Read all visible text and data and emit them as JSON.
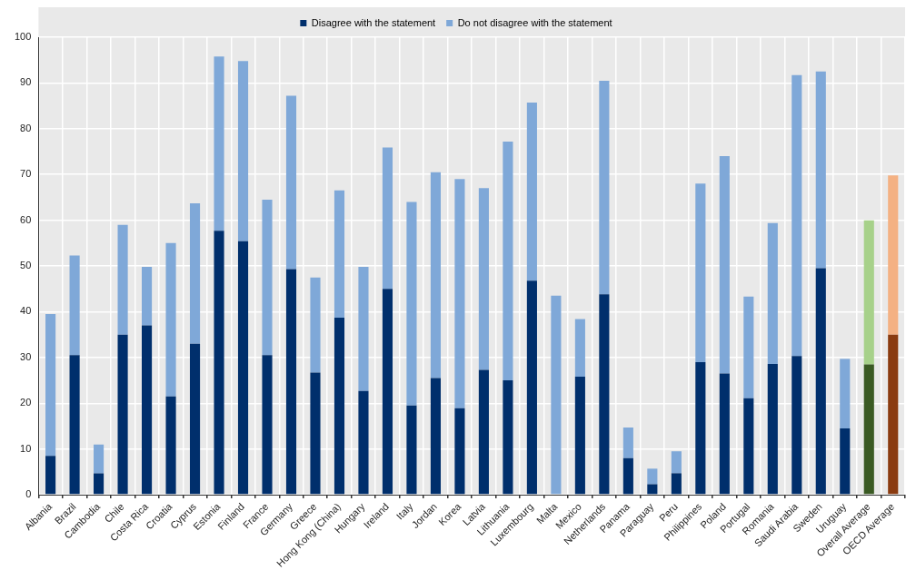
{
  "chart_data": {
    "type": "bar",
    "stacked": true,
    "legend": "top",
    "grid": true,
    "ylim": [
      0,
      100
    ],
    "yticks": [
      0,
      10,
      20,
      30,
      40,
      50,
      60,
      70,
      80,
      90,
      100
    ],
    "categories": [
      "Albania",
      "Brazil",
      "Cambodia",
      "Chile",
      "Costa Rica",
      "Croatia",
      "Cyprus",
      "Estonia",
      "Finland",
      "France",
      "Germany",
      "Greece",
      "Hong Kong (China)",
      "Hungary",
      "Ireland",
      "Italy",
      "Jordan",
      "Korea",
      "Latvia",
      "Lithuania",
      "Luxembourg",
      "Malta",
      "Mexico",
      "Netherlands",
      "Panama",
      "Paraguay",
      "Peru",
      "Philippines",
      "Poland",
      "Portugal",
      "Romania",
      "Saudi Arabia",
      "Sweden",
      "Uruguay",
      "Overall Average",
      "OECD Average"
    ],
    "series": [
      {
        "name": "Disagree with the statement",
        "color": "#002f6c",
        "colors": [
          "#002f6c",
          "#002f6c",
          "#002f6c",
          "#002f6c",
          "#002f6c",
          "#002f6c",
          "#002f6c",
          "#002f6c",
          "#002f6c",
          "#002f6c",
          "#002f6c",
          "#002f6c",
          "#002f6c",
          "#002f6c",
          "#002f6c",
          "#002f6c",
          "#002f6c",
          "#002f6c",
          "#002f6c",
          "#002f6c",
          "#002f6c",
          "#002f6c",
          "#002f6c",
          "#002f6c",
          "#002f6c",
          "#002f6c",
          "#002f6c",
          "#002f6c",
          "#002f6c",
          "#002f6c",
          "#002f6c",
          "#002f6c",
          "#002f6c",
          "#002f6c",
          "#3a5a23",
          "#8a3b10"
        ],
        "values": [
          8.5,
          30.5,
          4.7,
          35,
          37,
          21.5,
          33,
          57.7,
          55.4,
          30.5,
          49.3,
          26.7,
          38.7,
          22.7,
          45,
          19.5,
          25.5,
          18.9,
          27.3,
          25,
          46.8,
          0,
          25.8,
          43.8,
          8,
          2.3,
          4.7,
          29,
          26.5,
          21.1,
          28.6,
          30.3,
          49.5,
          14.5,
          28.5,
          35
        ]
      },
      {
        "name": "Do not disagree with the statement",
        "color": "#7fa8d8",
        "colors": [
          "#7fa8d8",
          "#7fa8d8",
          "#7fa8d8",
          "#7fa8d8",
          "#7fa8d8",
          "#7fa8d8",
          "#7fa8d8",
          "#7fa8d8",
          "#7fa8d8",
          "#7fa8d8",
          "#7fa8d8",
          "#7fa8d8",
          "#7fa8d8",
          "#7fa8d8",
          "#7fa8d8",
          "#7fa8d8",
          "#7fa8d8",
          "#7fa8d8",
          "#7fa8d8",
          "#7fa8d8",
          "#7fa8d8",
          "#7fa8d8",
          "#7fa8d8",
          "#7fa8d8",
          "#7fa8d8",
          "#7fa8d8",
          "#7fa8d8",
          "#7fa8d8",
          "#7fa8d8",
          "#7fa8d8",
          "#7fa8d8",
          "#7fa8d8",
          "#7fa8d8",
          "#7fa8d8",
          "#a7d18a",
          "#f4b183"
        ],
        "values": [
          31,
          21.8,
          6.3,
          24,
          12.8,
          33.5,
          30.7,
          38.1,
          39.4,
          34,
          37.9,
          20.8,
          27.8,
          27.1,
          30.9,
          44.5,
          45,
          50.1,
          39.7,
          52.2,
          38.9,
          43.5,
          12.6,
          46.7,
          6.7,
          3.4,
          4.8,
          39,
          47.5,
          22.2,
          30.8,
          61.4,
          43,
          15.2,
          31.5,
          34.8
        ]
      }
    ]
  }
}
